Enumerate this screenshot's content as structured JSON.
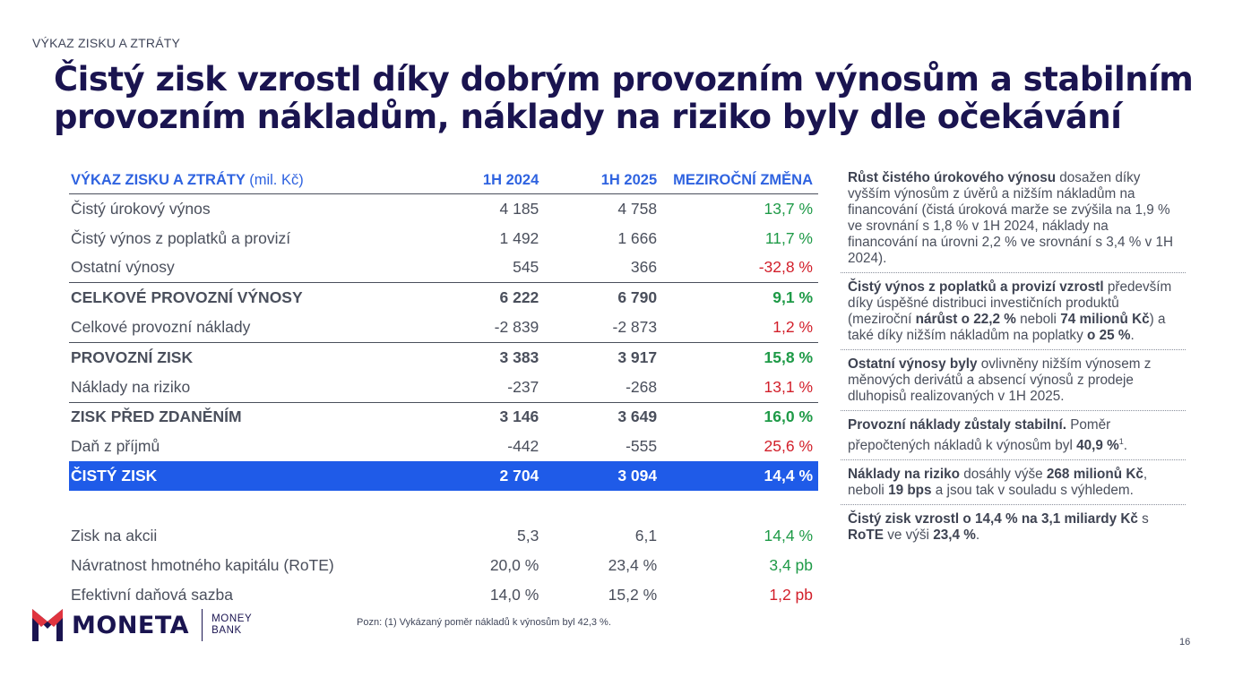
{
  "kicker": "VÝKAZ ZISKU A ZTRÁTY",
  "title_lines": [
    "Čistý zisk vzrostl díky dobrým provozním výnosům a stabilním",
    "provozním nákladům, náklady na riziko byly dle očekávání"
  ],
  "table": {
    "header": {
      "label": "VÝKAZ ZISKU A ZTRÁTY",
      "unit": "(mil. Kč)",
      "col1": "1H 2024",
      "col2": "1H 2025",
      "col3": "MEZIROČNÍ ZMĚNA"
    },
    "rows": [
      {
        "label": "Čistý úrokový výnos",
        "v1": "4 185",
        "v2": "4 758",
        "chg": "13,7 %"
      },
      {
        "label": "Čistý výnos z poplatků a provizí",
        "v1": "1 492",
        "v2": "1 666",
        "chg": "11,7 %"
      },
      {
        "label": "Ostatní výnosy",
        "v1": "545",
        "v2": "366",
        "chg": "-32,8 %"
      },
      {
        "label": "CELKOVÉ PROVOZNÍ VÝNOSY",
        "v1": "6 222",
        "v2": "6 790",
        "chg": "9,1 %"
      },
      {
        "label": "Celkové provozní náklady",
        "v1": "-2 839",
        "v2": "-2 873",
        "chg": "1,2 %"
      },
      {
        "label": "PROVOZNÍ ZISK",
        "v1": "3 383",
        "v2": "3 917",
        "chg": "15,8 %"
      },
      {
        "label": "Náklady na riziko",
        "v1": "-237",
        "v2": "-268",
        "chg": "13,1 %"
      },
      {
        "label": "ZISK PŘED ZDANĚNÍM",
        "v1": "3 146",
        "v2": "3 649",
        "chg": "16,0 %"
      },
      {
        "label": "Daň z příjmů",
        "v1": "-442",
        "v2": "-555",
        "chg": "25,6 %"
      },
      {
        "label": "ČISTÝ ZISK",
        "v1": "2 704",
        "v2": "3 094",
        "chg": "14,4 %"
      },
      {
        "label": "Zisk na akcii",
        "v1": "5,3",
        "v2": "6,1",
        "chg": "14,4 %"
      },
      {
        "label": "Návratnost hmotného kapitálu (RoTE)",
        "v1": "20,0 %",
        "v2": "23,4 %",
        "chg": "3,4 pb"
      },
      {
        "label": "Efektivní daňová sazba",
        "v1": "14,0 %",
        "v2": "15,2 %",
        "chg": "1,2 pb"
      }
    ]
  },
  "side": {
    "b1": {
      "bold": "Růst čistého úrokového výnosu",
      "text": " dosažen díky vyšším výnosům z úvěrů a nižším nákladům na financování (čistá úroková marže se zvýšila na 1,9 % ve srovnání s 1,8 % v 1H 2024, náklady na financování na úrovni 2,2 % ve srovnání s 3,4 % v 1H 2024)."
    },
    "b2": {
      "bold1": "Čistý výnos z poplatků a provizí vzrostl",
      "t1": " především díky úspěšné distribuci investičních produktů (meziroční ",
      "bold2": "nárůst o 22,2 %",
      "t2": " neboli ",
      "bold3": "74 milionů Kč",
      "t3": ") a také díky nižším nákladům na poplatky ",
      "bold4": "o 25 %",
      "t4": "."
    },
    "b3": {
      "bold": "Ostatní výnosy byly",
      "text": " ovlivněny nižším výnosem z měnových derivátů a absencí výnosů z prodeje dluhopisů realizovaných v 1H 2025."
    },
    "b4": {
      "bold1": "Provozní náklady zůstaly stabilní.",
      "t1": " Poměr přepočtených nákladů k výnosům byl ",
      "bold2": "40,9 %",
      "sup": "1",
      "t2": "."
    },
    "b5": {
      "bold1": "Náklady na riziko",
      "t1": " dosáhly výše ",
      "bold2": "268 milionů Kč",
      "t2": ", neboli ",
      "bold3": "19 bps",
      "t3": "  a jsou tak v souladu s výhledem."
    },
    "b6": {
      "bold1": "Čistý zisk vzrostl o 14,4 % na 3,1 miliardy Kč",
      "t1": " s ",
      "bold2": "RoTE",
      "t2": " ve výši ",
      "bold3": "23,4 %",
      "t3": "."
    }
  },
  "logo": {
    "word": "MONETA",
    "sub1": "MONEY",
    "sub2": "BANK"
  },
  "footnote": "Pozn: (1) Vykázaný poměr nákladů k výnosům byl 42,3 %.",
  "page_number": "16",
  "colors": {
    "navy": "#1a1450",
    "blue": "#2f63e0",
    "highlight": "#1f5be8",
    "positive": "#1e9a47",
    "negative": "#d21f2a"
  }
}
